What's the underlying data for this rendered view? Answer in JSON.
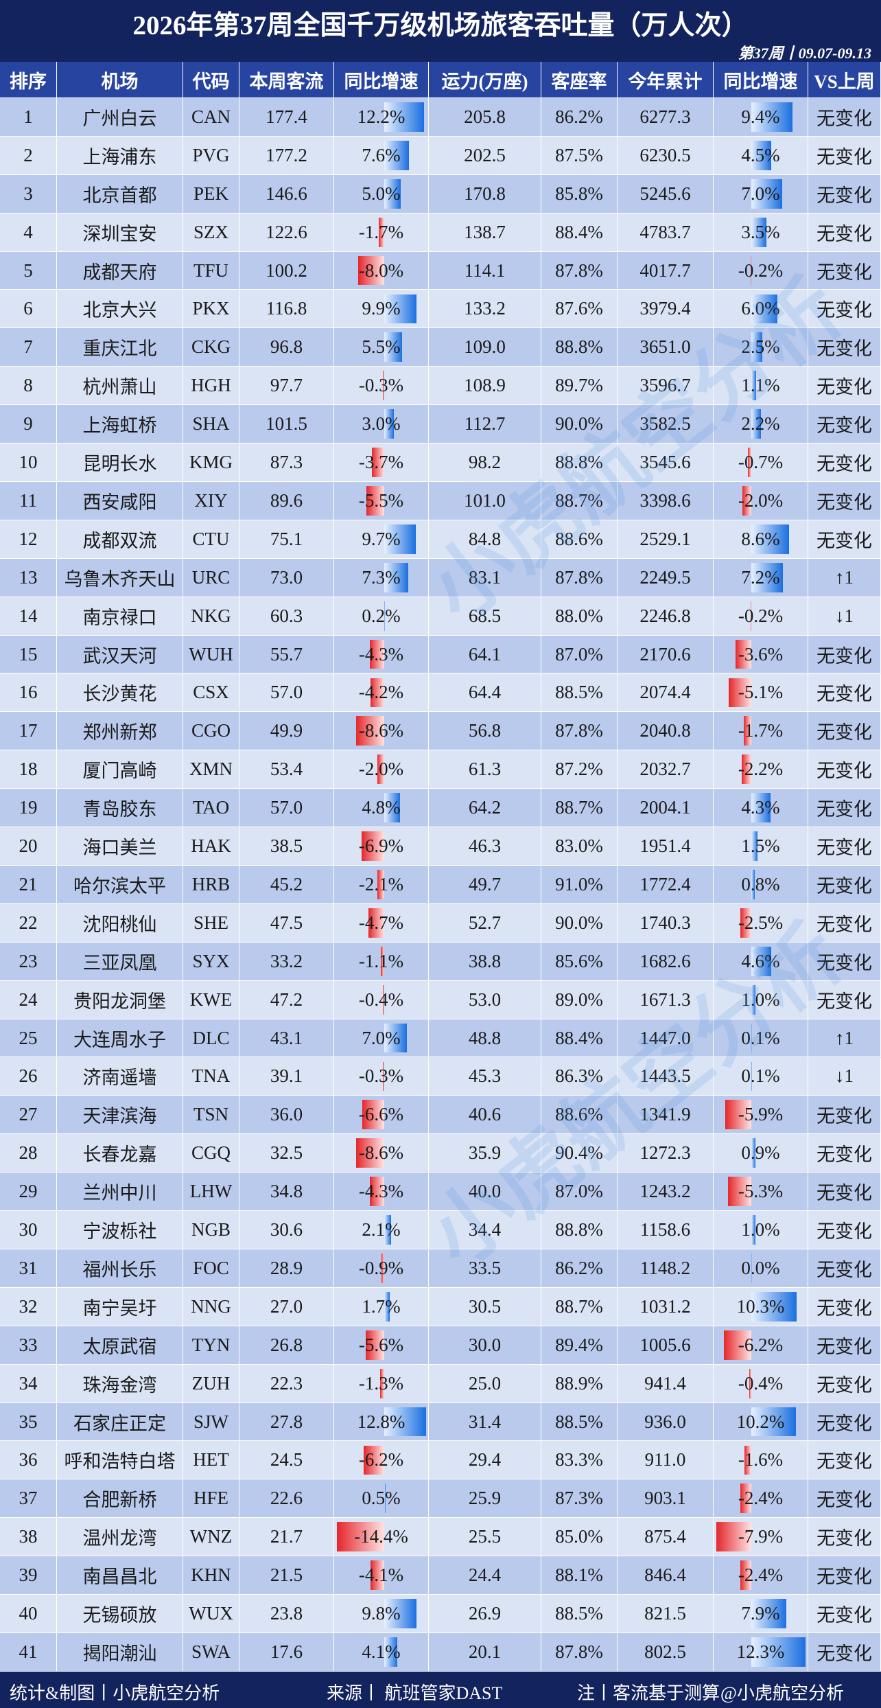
{
  "header": {
    "title": "2026年第37周全国千万级机场旅客吞吐量（万人次）",
    "subtitle": "第37周丨09.07-09.13"
  },
  "table": {
    "columns": [
      "排序",
      "机场",
      "代码",
      "本周客流",
      "同比增速",
      "运力(万座)",
      "客座率",
      "今年累计",
      "同比增速",
      "VS上周"
    ],
    "rows": [
      [
        "1",
        "广州白云",
        "CAN",
        "177.4",
        "12.2%",
        "205.8",
        "86.2%",
        "6277.3",
        "9.4%",
        "无变化"
      ],
      [
        "2",
        "上海浦东",
        "PVG",
        "177.2",
        "7.6%",
        "202.5",
        "87.5%",
        "6230.5",
        "4.5%",
        "无变化"
      ],
      [
        "3",
        "北京首都",
        "PEK",
        "146.6",
        "5.0%",
        "170.8",
        "85.8%",
        "5245.6",
        "7.0%",
        "无变化"
      ],
      [
        "4",
        "深圳宝安",
        "SZX",
        "122.6",
        "-1.7%",
        "138.7",
        "88.4%",
        "4783.7",
        "3.5%",
        "无变化"
      ],
      [
        "5",
        "成都天府",
        "TFU",
        "100.2",
        "-8.0%",
        "114.1",
        "87.8%",
        "4017.7",
        "-0.2%",
        "无变化"
      ],
      [
        "6",
        "北京大兴",
        "PKX",
        "116.8",
        "9.9%",
        "133.2",
        "87.6%",
        "3979.4",
        "6.0%",
        "无变化"
      ],
      [
        "7",
        "重庆江北",
        "CKG",
        "96.8",
        "5.5%",
        "109.0",
        "88.8%",
        "3651.0",
        "2.5%",
        "无变化"
      ],
      [
        "8",
        "杭州萧山",
        "HGH",
        "97.7",
        "-0.3%",
        "108.9",
        "89.7%",
        "3596.7",
        "1.1%",
        "无变化"
      ],
      [
        "9",
        "上海虹桥",
        "SHA",
        "101.5",
        "3.0%",
        "112.7",
        "90.0%",
        "3582.5",
        "2.2%",
        "无变化"
      ],
      [
        "10",
        "昆明长水",
        "KMG",
        "87.3",
        "-3.7%",
        "98.2",
        "88.8%",
        "3545.6",
        "-0.7%",
        "无变化"
      ],
      [
        "11",
        "西安咸阳",
        "XIY",
        "89.6",
        "-5.5%",
        "101.0",
        "88.7%",
        "3398.6",
        "-2.0%",
        "无变化"
      ],
      [
        "12",
        "成都双流",
        "CTU",
        "75.1",
        "9.7%",
        "84.8",
        "88.6%",
        "2529.1",
        "8.6%",
        "无变化"
      ],
      [
        "13",
        "乌鲁木齐天山",
        "URC",
        "73.0",
        "7.3%",
        "83.1",
        "87.8%",
        "2249.5",
        "7.2%",
        "↑1"
      ],
      [
        "14",
        "南京禄口",
        "NKG",
        "60.3",
        "0.2%",
        "68.5",
        "88.0%",
        "2246.8",
        "-0.2%",
        "↓1"
      ],
      [
        "15",
        "武汉天河",
        "WUH",
        "55.7",
        "-4.3%",
        "64.1",
        "87.0%",
        "2170.6",
        "-3.6%",
        "无变化"
      ],
      [
        "16",
        "长沙黄花",
        "CSX",
        "57.0",
        "-4.2%",
        "64.4",
        "88.5%",
        "2074.4",
        "-5.1%",
        "无变化"
      ],
      [
        "17",
        "郑州新郑",
        "CGO",
        "49.9",
        "-8.6%",
        "56.8",
        "87.8%",
        "2040.8",
        "-1.7%",
        "无变化"
      ],
      [
        "18",
        "厦门高崎",
        "XMN",
        "53.4",
        "-2.0%",
        "61.3",
        "87.2%",
        "2032.7",
        "-2.2%",
        "无变化"
      ],
      [
        "19",
        "青岛胶东",
        "TAO",
        "57.0",
        "4.8%",
        "64.2",
        "88.7%",
        "2004.1",
        "4.3%",
        "无变化"
      ],
      [
        "20",
        "海口美兰",
        "HAK",
        "38.5",
        "-6.9%",
        "46.3",
        "83.0%",
        "1951.4",
        "1.5%",
        "无变化"
      ],
      [
        "21",
        "哈尔滨太平",
        "HRB",
        "45.2",
        "-2.1%",
        "49.7",
        "91.0%",
        "1772.4",
        "0.8%",
        "无变化"
      ],
      [
        "22",
        "沈阳桃仙",
        "SHE",
        "47.5",
        "-4.7%",
        "52.7",
        "90.0%",
        "1740.3",
        "-2.5%",
        "无变化"
      ],
      [
        "23",
        "三亚凤凰",
        "SYX",
        "33.2",
        "-1.1%",
        "38.8",
        "85.6%",
        "1682.6",
        "4.6%",
        "无变化"
      ],
      [
        "24",
        "贵阳龙洞堡",
        "KWE",
        "47.2",
        "-0.4%",
        "53.0",
        "89.0%",
        "1671.3",
        "1.0%",
        "无变化"
      ],
      [
        "25",
        "大连周水子",
        "DLC",
        "43.1",
        "7.0%",
        "48.8",
        "88.4%",
        "1447.0",
        "0.1%",
        "↑1"
      ],
      [
        "26",
        "济南遥墙",
        "TNA",
        "39.1",
        "-0.3%",
        "45.3",
        "86.3%",
        "1443.5",
        "0.1%",
        "↓1"
      ],
      [
        "27",
        "天津滨海",
        "TSN",
        "36.0",
        "-6.6%",
        "40.6",
        "88.6%",
        "1341.9",
        "-5.9%",
        "无变化"
      ],
      [
        "28",
        "长春龙嘉",
        "CGQ",
        "32.5",
        "-8.6%",
        "35.9",
        "90.4%",
        "1272.3",
        "0.9%",
        "无变化"
      ],
      [
        "29",
        "兰州中川",
        "LHW",
        "34.8",
        "-4.3%",
        "40.0",
        "87.0%",
        "1243.2",
        "-5.3%",
        "无变化"
      ],
      [
        "30",
        "宁波栎社",
        "NGB",
        "30.6",
        "2.1%",
        "34.4",
        "88.8%",
        "1158.6",
        "1.0%",
        "无变化"
      ],
      [
        "31",
        "福州长乐",
        "FOC",
        "28.9",
        "-0.9%",
        "33.5",
        "86.2%",
        "1148.2",
        "0.0%",
        "无变化"
      ],
      [
        "32",
        "南宁吴圩",
        "NNG",
        "27.0",
        "1.7%",
        "30.5",
        "88.7%",
        "1031.2",
        "10.3%",
        "无变化"
      ],
      [
        "33",
        "太原武宿",
        "TYN",
        "26.8",
        "-5.6%",
        "30.0",
        "89.4%",
        "1005.6",
        "-6.2%",
        "无变化"
      ],
      [
        "34",
        "珠海金湾",
        "ZUH",
        "22.3",
        "-1.3%",
        "25.0",
        "88.9%",
        "941.4",
        "-0.4%",
        "无变化"
      ],
      [
        "35",
        "石家庄正定",
        "SJW",
        "27.8",
        "12.8%",
        "31.4",
        "88.5%",
        "936.0",
        "10.2%",
        "无变化"
      ],
      [
        "36",
        "呼和浩特白塔",
        "HET",
        "24.5",
        "-6.2%",
        "29.4",
        "83.3%",
        "911.0",
        "-1.6%",
        "无变化"
      ],
      [
        "37",
        "合肥新桥",
        "HFE",
        "22.6",
        "0.5%",
        "25.9",
        "87.3%",
        "903.1",
        "-2.4%",
        "无变化"
      ],
      [
        "38",
        "温州龙湾",
        "WNZ",
        "21.7",
        "-14.4%",
        "25.5",
        "85.0%",
        "875.4",
        "-7.9%",
        "无变化"
      ],
      [
        "39",
        "南昌昌北",
        "KHN",
        "21.5",
        "-4.1%",
        "24.4",
        "88.1%",
        "846.4",
        "-2.4%",
        "无变化"
      ],
      [
        "40",
        "无锡硕放",
        "WUX",
        "23.8",
        "9.8%",
        "26.9",
        "88.5%",
        "821.5",
        "7.9%",
        "无变化"
      ],
      [
        "41",
        "揭阳潮汕",
        "SWA",
        "17.6",
        "4.1%",
        "20.1",
        "87.8%",
        "802.5",
        "12.3%",
        "无变化"
      ]
    ]
  },
  "watermark": "小虎航空分析",
  "footer": {
    "left": "统计&制图丨小虎航空分析",
    "center": "来源丨 航班管家DAST",
    "right": "注丨客流基于测算",
    "weibo": "@小虎航空分析"
  }
}
